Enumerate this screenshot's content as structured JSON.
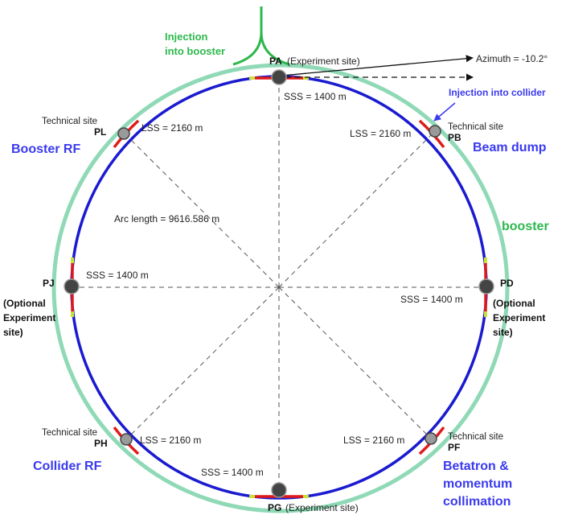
{
  "colors": {
    "booster_ring": "#8fd9b6",
    "collider_ring": "#1a1ad0",
    "straight_section": "#e01a1a",
    "marker": "#c8e03a",
    "injection_green": "#2db84d",
    "region_label_blue": "#3a3af0",
    "site_dark": "#444444",
    "site_light": "#9a9a9a",
    "dashed": "#555555"
  },
  "labels": {
    "injection_booster_line1": "Injection",
    "injection_booster_line2": "into booster",
    "pa": "PA",
    "pa_sub": "(Experiment site)",
    "azimuth": "Azimuth = -10.2°",
    "injection_collider": "Injection into collider",
    "sss_top": "SSS = 1400 m",
    "tech_pl": "Technical site",
    "pl": "PL",
    "lss_pl": "LSS = 2160 m",
    "booster_rf": "Booster RF",
    "lss_pb": "LSS = 2160 m",
    "tech_pb": "Technical site",
    "pb": "PB",
    "beam_dump": "Beam dump",
    "booster": "booster",
    "arc_length": "Arc length = 9616.586 m",
    "pj": "PJ",
    "sss_left": "SSS = 1400 m",
    "pj_optional_1": "(Optional",
    "pj_optional_2": "Experiment",
    "pj_optional_3": "site)",
    "pd": "PD",
    "sss_right": "SSS = 1400 m",
    "pd_optional_1": "(Optional",
    "pd_optional_2": "Experiment",
    "pd_optional_3": "site)",
    "tech_ph": "Technical site",
    "ph": "PH",
    "lss_ph": "LSS = 2160 m",
    "collider_rf": "Collider RF",
    "lss_pf": "LSS = 2160 m",
    "tech_pf": "Technical site",
    "pf": "PF",
    "betatron_1": "Betatron &",
    "betatron_2": "momentum",
    "betatron_3": "collimation",
    "sss_bottom": "SSS = 1400 m",
    "pg": "PG",
    "pg_sub": "(Experiment site)"
  }
}
